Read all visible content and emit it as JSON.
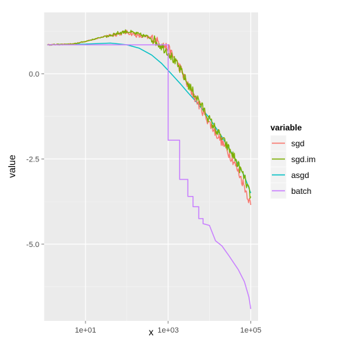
{
  "chart_data": {
    "type": "line",
    "xlabel": "x",
    "ylabel": "value",
    "x_scale": "log10",
    "xlim": [
      1,
      150000
    ],
    "ylim": [
      -7.25,
      1.8
    ],
    "grid": true,
    "x_ticks": [
      {
        "value": 10,
        "label": "1e+01"
      },
      {
        "value": 1000,
        "label": "1e+03"
      },
      {
        "value": 100000,
        "label": "1e+05"
      }
    ],
    "y_ticks": [
      {
        "value": 0.0,
        "label": "0.0"
      },
      {
        "value": -2.5,
        "label": "-2.5"
      },
      {
        "value": -5.0,
        "label": "-5.0"
      }
    ],
    "legend": {
      "title": "variable",
      "position": "right"
    },
    "series": [
      {
        "name": "sgd",
        "color": "#F8766D",
        "noisy": true,
        "points": [
          [
            1.2,
            0.85
          ],
          [
            5,
            0.87
          ],
          [
            10,
            0.95
          ],
          [
            30,
            1.1
          ],
          [
            100,
            1.22
          ],
          [
            200,
            1.1
          ],
          [
            400,
            1.05
          ],
          [
            1000,
            0.75
          ],
          [
            2000,
            0.15
          ],
          [
            3000,
            -0.35
          ],
          [
            5000,
            -0.8
          ],
          [
            10000,
            -1.45
          ],
          [
            20000,
            -2.0
          ],
          [
            40000,
            -2.6
          ],
          [
            70000,
            -3.3
          ],
          [
            100000,
            -3.85
          ]
        ]
      },
      {
        "name": "sgd.im",
        "color": "#7CAE00",
        "noisy": true,
        "points": [
          [
            1.2,
            0.85
          ],
          [
            5,
            0.87
          ],
          [
            10,
            0.95
          ],
          [
            30,
            1.1
          ],
          [
            100,
            1.25
          ],
          [
            200,
            1.15
          ],
          [
            400,
            1.05
          ],
          [
            1000,
            0.65
          ],
          [
            2000,
            0.1
          ],
          [
            3000,
            -0.3
          ],
          [
            5000,
            -0.7
          ],
          [
            10000,
            -1.35
          ],
          [
            20000,
            -1.9
          ],
          [
            40000,
            -2.45
          ],
          [
            70000,
            -3.05
          ],
          [
            100000,
            -3.6
          ]
        ]
      },
      {
        "name": "asgd",
        "color": "#00BFC4",
        "noisy": false,
        "points": [
          [
            1.2,
            0.85
          ],
          [
            10,
            0.87
          ],
          [
            40,
            0.9
          ],
          [
            100,
            0.85
          ],
          [
            200,
            0.75
          ],
          [
            400,
            0.55
          ],
          [
            700,
            0.3
          ],
          [
            1000,
            0.1
          ],
          [
            2000,
            -0.3
          ],
          [
            3000,
            -0.55
          ],
          [
            5000,
            -0.85
          ],
          [
            10000,
            -1.3
          ],
          [
            20000,
            -1.85
          ],
          [
            40000,
            -2.45
          ],
          [
            70000,
            -3.0
          ],
          [
            100000,
            -3.5
          ]
        ]
      },
      {
        "name": "batch",
        "color": "#C77CFF",
        "noisy": false,
        "points": [
          [
            1.2,
            0.85
          ],
          [
            1000,
            0.85
          ],
          [
            1000,
            -1.95
          ],
          [
            1900,
            -1.95
          ],
          [
            1900,
            -3.1
          ],
          [
            3000,
            -3.1
          ],
          [
            3000,
            -3.6
          ],
          [
            4000,
            -3.6
          ],
          [
            4000,
            -3.9
          ],
          [
            5500,
            -3.9
          ],
          [
            5500,
            -4.25
          ],
          [
            7000,
            -4.25
          ],
          [
            7000,
            -4.4
          ],
          [
            10000,
            -4.45
          ],
          [
            14000,
            -4.9
          ],
          [
            20000,
            -5.05
          ],
          [
            30000,
            -5.35
          ],
          [
            50000,
            -5.75
          ],
          [
            70000,
            -6.1
          ],
          [
            90000,
            -6.55
          ],
          [
            100000,
            -6.9
          ]
        ]
      }
    ]
  }
}
